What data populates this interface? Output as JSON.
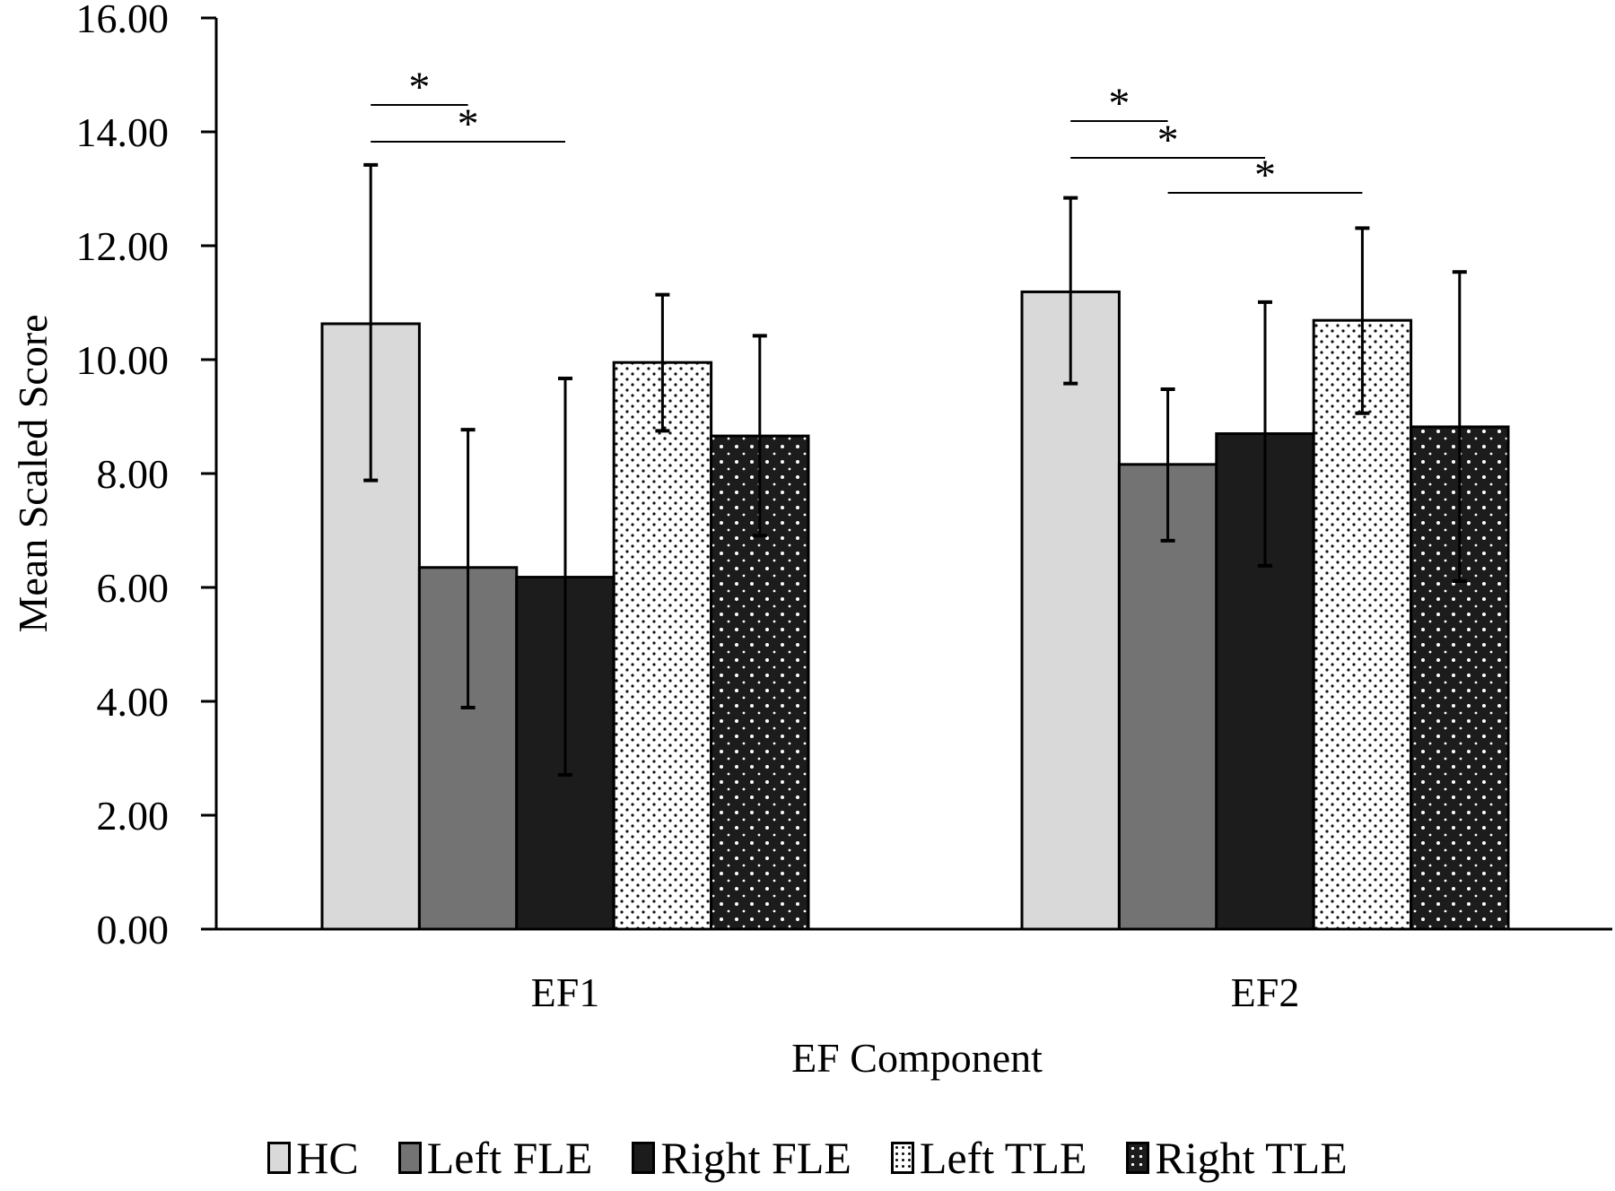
{
  "chart_data": {
    "type": "bar",
    "title": "",
    "xlabel": "EF Component",
    "ylabel": "Mean Scaled Score",
    "ylim": [
      0,
      16
    ],
    "yticks": [
      "0.00",
      "2.00",
      "4.00",
      "6.00",
      "8.00",
      "10.00",
      "12.00",
      "14.00",
      "16.00"
    ],
    "grid": false,
    "legend_position": "bottom",
    "categories": [
      "EF1",
      "EF2"
    ],
    "series": [
      {
        "name": "HC",
        "fill": "#d9d9d9",
        "pattern": "solid",
        "values": [
          10.63,
          11.19
        ],
        "error_low": [
          7.88,
          9.58
        ],
        "error_high": [
          13.42,
          12.84
        ]
      },
      {
        "name": "Left FLE",
        "fill": "#737373",
        "pattern": "solid",
        "values": [
          6.35,
          8.16
        ],
        "error_low": [
          3.89,
          6.82
        ],
        "error_high": [
          8.77,
          9.48
        ]
      },
      {
        "name": "Right FLE",
        "fill": "#1c1c1c",
        "pattern": "solid",
        "values": [
          6.18,
          8.7
        ],
        "error_low": [
          2.71,
          6.38
        ],
        "error_high": [
          9.67,
          11.01
        ]
      },
      {
        "name": "Left TLE",
        "fill": "#ffffff",
        "pattern": "dots-dark-on-light",
        "values": [
          9.95,
          10.69
        ],
        "error_low": [
          8.75,
          9.06
        ],
        "error_high": [
          11.14,
          12.31
        ]
      },
      {
        "name": "Right TLE",
        "fill": "#1c1c1c",
        "pattern": "dots-light-on-dark",
        "values": [
          8.66,
          8.82
        ],
        "error_low": [
          6.91,
          6.11
        ],
        "error_high": [
          10.42,
          11.54
        ]
      }
    ],
    "significance": [
      {
        "category": "EF1",
        "from": "HC",
        "to": "Left FLE",
        "label": "*"
      },
      {
        "category": "EF1",
        "from": "HC",
        "to": "Right FLE",
        "label": "*"
      },
      {
        "category": "EF2",
        "from": "HC",
        "to": "Left FLE",
        "label": "*"
      },
      {
        "category": "EF2",
        "from": "HC",
        "to": "Right FLE",
        "label": "*"
      },
      {
        "category": "EF2",
        "from": "Left FLE",
        "to": "Left TLE",
        "label": "*"
      }
    ]
  }
}
